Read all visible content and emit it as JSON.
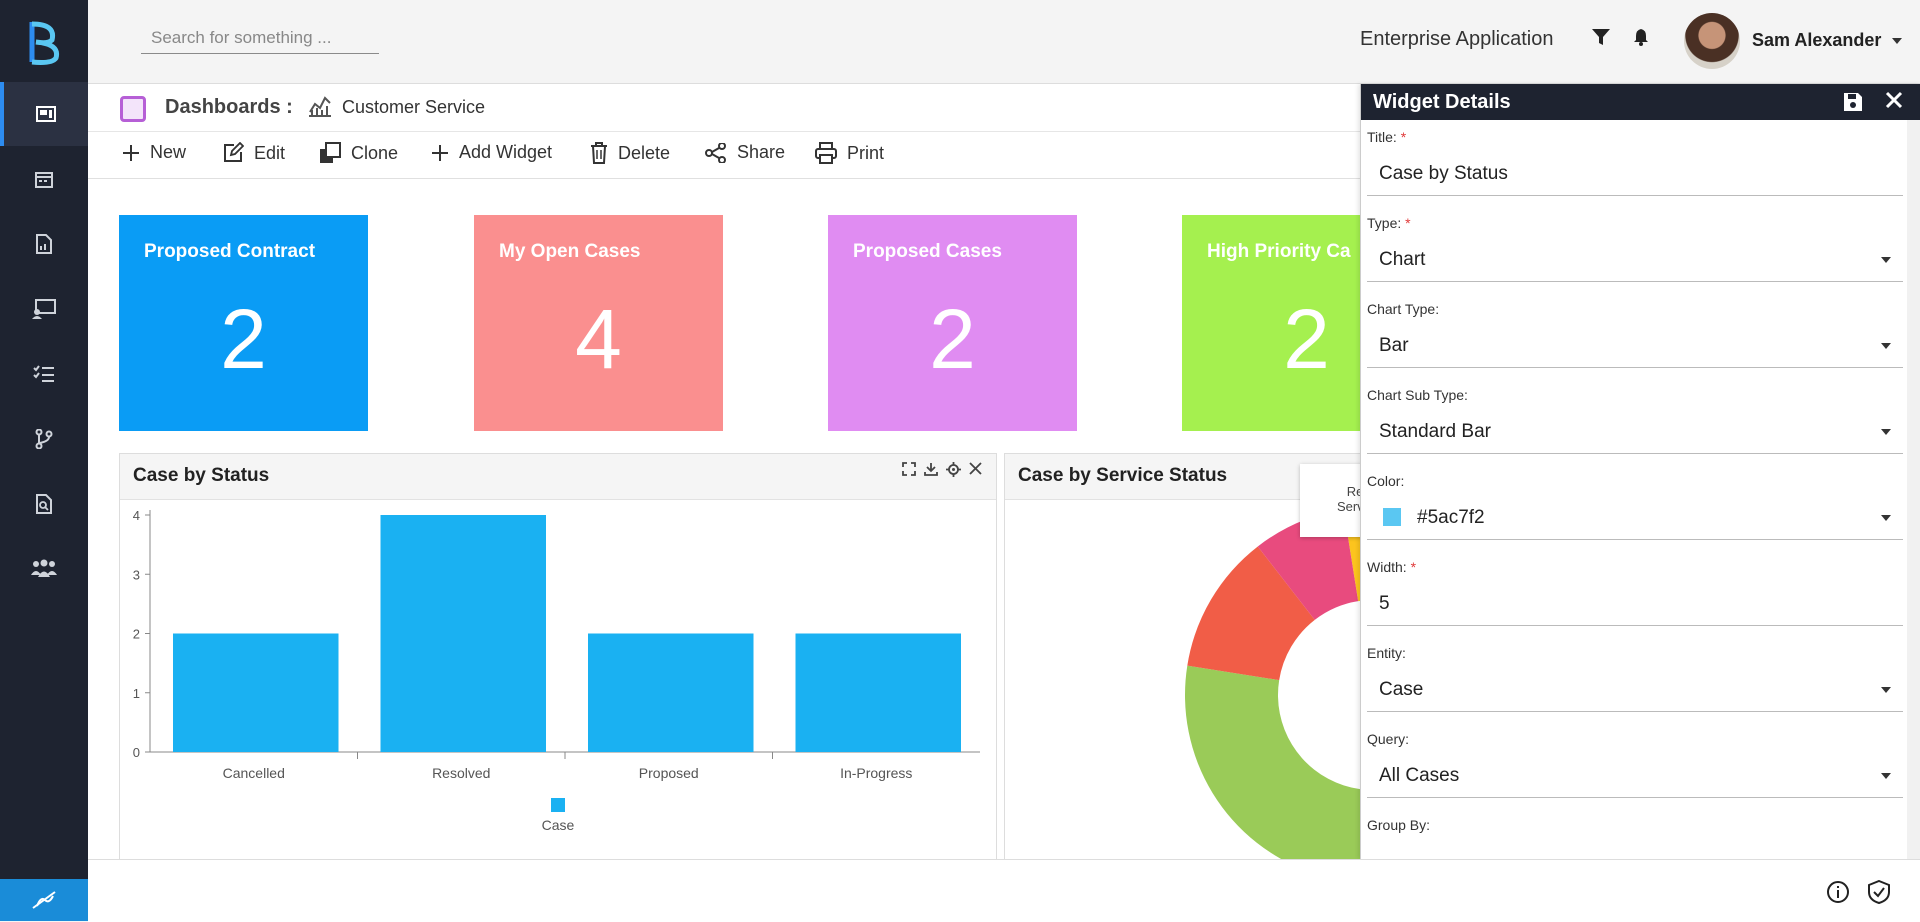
{
  "sidebar": {
    "items": [
      "dashboard-icon",
      "calendar-icon",
      "report-icon",
      "monitor-icon",
      "checklist-icon",
      "branch-icon",
      "search-document-icon",
      "team-icon"
    ]
  },
  "header": {
    "search_placeholder": "Search for something ...",
    "app_name": "Enterprise Application",
    "user_name": "Sam Alexander"
  },
  "breadcrumb": {
    "title": "Dashboards :",
    "current": "Customer Service"
  },
  "toolbar": {
    "new": "New",
    "edit": "Edit",
    "clone": "Clone",
    "add_widget": "Add Widget",
    "delete": "Delete",
    "share": "Share",
    "print": "Print"
  },
  "tiles": [
    {
      "title": "Proposed Contract",
      "value": "2",
      "color": "#0a9cf5"
    },
    {
      "title": "My Open Cases",
      "value": "4",
      "color": "#fa8f8f"
    },
    {
      "title": "Proposed Cases",
      "value": "2",
      "color": "#e08cf2"
    },
    {
      "title": "High Priority Ca",
      "value": "2",
      "color": "#a5f04f"
    }
  ],
  "panels": {
    "left_title": "Case by Status",
    "right_title": "Case by Service Status",
    "tooltip_line1": "Re",
    "tooltip_line2": "Servic"
  },
  "chart_data": {
    "type": "bar",
    "categories": [
      "Cancelled",
      "Resolved",
      "Proposed",
      "In-Progress"
    ],
    "series": [
      {
        "name": "Case",
        "values": [
          2,
          4,
          2,
          2
        ],
        "color": "#1ab1f2"
      }
    ],
    "yticks": [
      "0",
      "1",
      "2",
      "3",
      "4"
    ],
    "ylim": [
      0,
      4
    ],
    "legend": "bottom"
  },
  "donut": {
    "segments": [
      {
        "color": "#fcc41e",
        "value": 0.35
      },
      {
        "color": "#9acb58",
        "value": 0.45
      },
      {
        "color": "#f15d47",
        "value": 0.12
      },
      {
        "color": "#e84b7e",
        "value": 0.08
      }
    ]
  },
  "widget_details": {
    "header": "Widget Details",
    "fields": [
      {
        "label": "Title:",
        "required": "*",
        "value": "Case by Status",
        "dropdown": false
      },
      {
        "label": "Type:",
        "required": "*",
        "value": "Chart",
        "dropdown": true
      },
      {
        "label": "Chart Type:",
        "required": "",
        "value": "Bar",
        "dropdown": true
      },
      {
        "label": "Chart Sub Type:",
        "required": "",
        "value": "Standard Bar",
        "dropdown": true
      },
      {
        "label": "Color:",
        "required": "",
        "value": "#5ac7f2",
        "dropdown": true,
        "swatch": "#5ac7f2"
      },
      {
        "label": "Width:",
        "required": "*",
        "value": "5",
        "dropdown": false
      },
      {
        "label": "Entity:",
        "required": "",
        "value": "Case",
        "dropdown": true
      },
      {
        "label": "Query:",
        "required": "",
        "value": "All Cases",
        "dropdown": true
      },
      {
        "label": "Group By:",
        "required": "",
        "value": "",
        "dropdown": false
      }
    ]
  }
}
